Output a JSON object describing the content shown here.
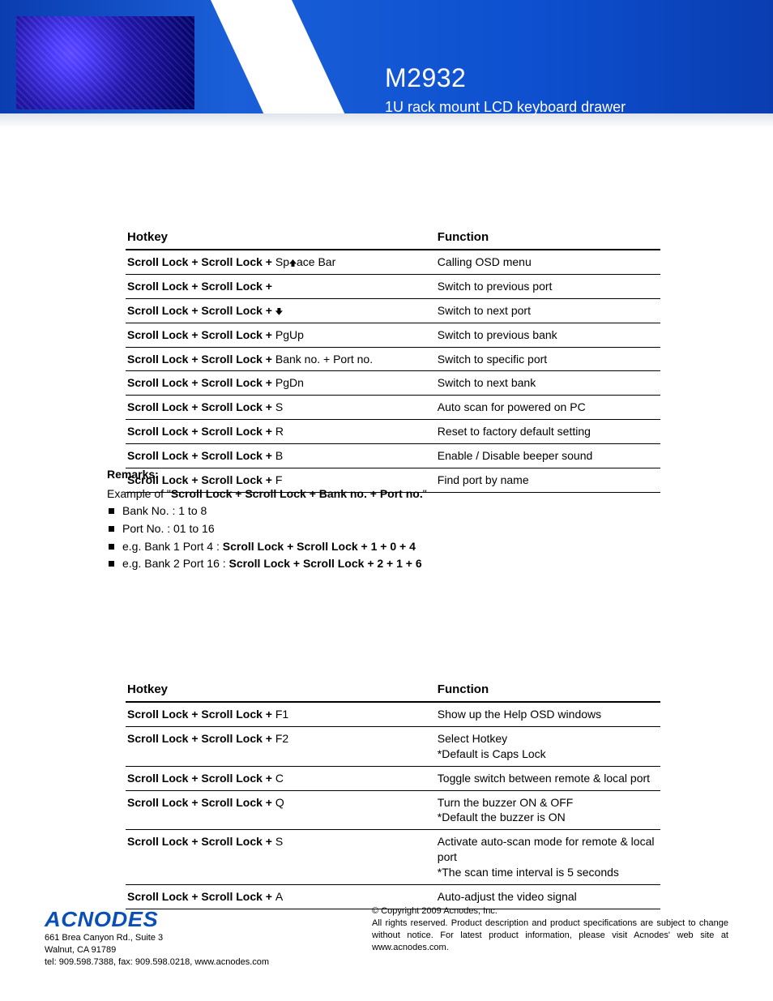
{
  "header": {
    "model": "M2932",
    "subtitle": "1U rack mount LCD keyboard drawer"
  },
  "table1": {
    "col_hotkey": "Hotkey",
    "col_function": "Function",
    "rows": [
      {
        "hk_prefix": "Scroll Lock  +  Scroll Lock  +  ",
        "hk_suffix": "Space Bar",
        "arrow": "up-inline",
        "fn": "Calling OSD menu"
      },
      {
        "hk_prefix": "Scroll Lock  +  Scroll Lock  +",
        "hk_suffix": "",
        "arrow": "",
        "fn": "Switch to previous port"
      },
      {
        "hk_prefix": "Scroll Lock  +  Scroll Lock  +   ",
        "hk_suffix": "",
        "arrow": "down",
        "fn": "Switch to next port"
      },
      {
        "hk_prefix": "Scroll Lock  +  Scroll Lock  +   ",
        "hk_suffix": "PgUp",
        "arrow": "",
        "fn": "Switch to previous bank"
      },
      {
        "hk_prefix": "Scroll Lock  +  Scroll Lock  +   ",
        "hk_suffix": "Bank no.  +  Port no.",
        "arrow": "",
        "fn": "Switch to specific port"
      },
      {
        "hk_prefix": "Scroll Lock  +  Scroll Lock  +   ",
        "hk_suffix": "PgDn",
        "arrow": "",
        "fn": "Switch to next bank"
      },
      {
        "hk_prefix": "Scroll Lock  +  Scroll Lock  +   ",
        "hk_suffix": "S",
        "arrow": "",
        "fn": "Auto scan for powered on PC"
      },
      {
        "hk_prefix": "Scroll Lock  +  Scroll Lock  +   ",
        "hk_suffix": "R",
        "arrow": "",
        "fn": "Reset to factory default setting"
      },
      {
        "hk_prefix": "Scroll Lock  +  Scroll Lock  +   ",
        "hk_suffix": "B",
        "arrow": "",
        "fn": "Enable / Disable beeper sound"
      },
      {
        "hk_prefix": "Scroll Lock  +  Scroll Lock  +   ",
        "hk_suffix": "F",
        "arrow": "",
        "fn": "Find port by name"
      }
    ]
  },
  "remarks": {
    "heading": "Remarks:",
    "intro_a": "Example of \"",
    "intro_b": "Scroll Lock  +  Scroll Lock  +   Bank no.  +  Port no.",
    "intro_c": "\"",
    "bullets": [
      {
        "plain": "Bank No. :  1 to 8",
        "bold": ""
      },
      {
        "plain": "Port No. :  01 to 16",
        "bold": ""
      },
      {
        "plain": "e.g. Bank 1 Port 4 :  ",
        "bold": "Scroll Lock   +   Scroll Lock   +   1   +   0   +   4"
      },
      {
        "plain": "e.g. Bank 2 Port 16 :  ",
        "bold": "Scroll Lock   +   Scroll Lock   +   2   +   1   +   6"
      }
    ]
  },
  "table2": {
    "col_hotkey": "Hotkey",
    "col_function": "Function",
    "rows": [
      {
        "hk_prefix": "Scroll Lock  +  Scroll Lock  +   ",
        "hk_suffix": "F1",
        "fn": "Show up the Help OSD windows"
      },
      {
        "hk_prefix": "Scroll Lock  +  Scroll Lock  +   ",
        "hk_suffix": "F2",
        "fn": "Select Hotkey\n*Default is Caps Lock"
      },
      {
        "hk_prefix": "Scroll Lock  +  Scroll Lock  +   ",
        "hk_suffix": "C",
        "fn": "Toggle switch between remote & local port"
      },
      {
        "hk_prefix": "Scroll Lock  +  Scroll Lock  +   ",
        "hk_suffix": "Q",
        "fn": "Turn the buzzer ON & OFF\n*Default the buzzer is ON"
      },
      {
        "hk_prefix": "Scroll Lock  +  Scroll Lock  +   ",
        "hk_suffix": "S",
        "fn": "Activate auto-scan mode for remote & local port\n*The scan time interval is 5 seconds"
      },
      {
        "hk_prefix": "Scroll Lock  +  Scroll Lock  +   ",
        "hk_suffix": "A",
        "fn": "Auto-adjust the video signal"
      }
    ]
  },
  "footer": {
    "logo": "ACNODES",
    "addr1": "661 Brea Canyon Rd., Suite 3",
    "addr2": "Walnut, CA 91789",
    "addr3": "tel: 909.598.7388, fax: 909.598.0218, www.acnodes.com",
    "copy1": "© Copyright 2009 Acnodes, Inc.",
    "copy2": "All rights reserved. Product description and product specifications are subject to change without notice. For latest product information, please visit Acnodes' web site at www.acnodes.com."
  },
  "colors": {
    "banner_blue": "#0d4fcf",
    "text": "#000000",
    "logo": "#0a4fb8"
  }
}
